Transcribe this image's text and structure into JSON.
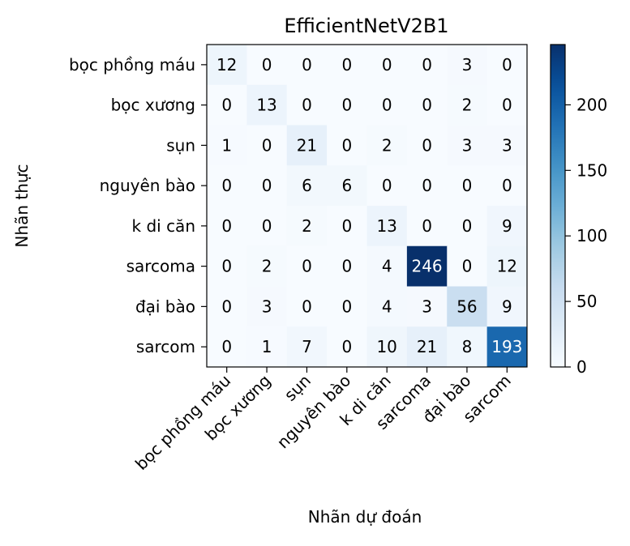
{
  "chart_data": {
    "type": "heatmap",
    "title": "EfficientNetV2B1",
    "xlabel": "Nhãn dự đoán",
    "ylabel": "Nhãn thực",
    "x_categories": [
      "bọc phồng máu",
      "bọc xương",
      "sụn",
      "nguyên bào",
      "k di căn",
      "sarcoma",
      "đại bào",
      "sarcom"
    ],
    "y_categories": [
      "bọc phồng máu",
      "bọc xương",
      "sụn",
      "nguyên bào",
      "k di căn",
      "sarcoma",
      "đại bào",
      "sarcom"
    ],
    "matrix": [
      [
        12,
        0,
        0,
        0,
        0,
        0,
        3,
        0
      ],
      [
        0,
        13,
        0,
        0,
        0,
        0,
        2,
        0
      ],
      [
        1,
        0,
        21,
        0,
        2,
        0,
        3,
        3
      ],
      [
        0,
        0,
        6,
        6,
        0,
        0,
        0,
        0
      ],
      [
        0,
        0,
        2,
        0,
        13,
        0,
        0,
        9
      ],
      [
        0,
        2,
        0,
        0,
        4,
        246,
        0,
        12
      ],
      [
        0,
        3,
        0,
        0,
        4,
        3,
        56,
        9
      ],
      [
        0,
        1,
        7,
        0,
        10,
        21,
        8,
        193
      ]
    ],
    "colormap": "Blues",
    "colorbar": {
      "min": 0,
      "max": 246,
      "ticks": [
        0,
        50,
        100,
        150,
        200
      ]
    },
    "grid": false,
    "cell_text_dark": "#000000",
    "cell_text_light": "#ffffff"
  }
}
